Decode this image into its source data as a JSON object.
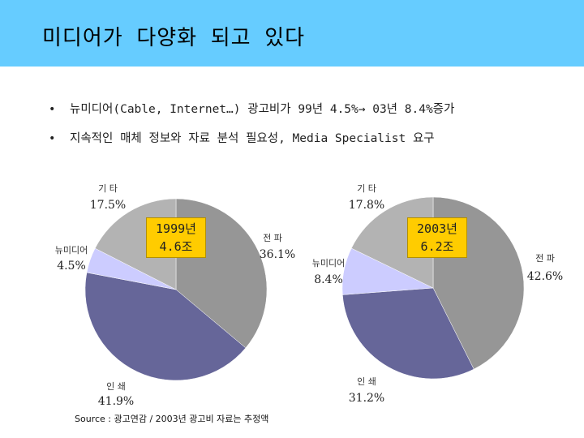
{
  "slide": {
    "title": "미디어가 다양화 되고 있다",
    "bullets": [
      {
        "marker": "•",
        "text": "뉴미디어(Cable, Internet…) 광고비가 99년 4.5%→ 03년 8.4%증가"
      },
      {
        "marker": "•",
        "text": "지속적인 매체 정보와 자료 분석 필요성, Media Specialist 요구"
      }
    ],
    "source": "Source : 광고연감 / 2003년 광고비 자료는 추정액"
  },
  "colors": {
    "title_bar": "#66ccff",
    "tv": "#969696",
    "print": "#666699",
    "new_media": "#ccccff",
    "other": "#b3b3b3",
    "year_box": "#ffcc00"
  },
  "chart_data": [
    {
      "type": "pie",
      "title": "1999년 4.6조",
      "box_lines": [
        "1999년",
        "4.6조"
      ],
      "slices": [
        {
          "name": "전파",
          "value": 36.1,
          "label": "36.1%"
        },
        {
          "name": "인쇄",
          "value": 41.9,
          "label": "41.9%"
        },
        {
          "name": "뉴미디어",
          "value": 4.5,
          "label": "4.5%"
        },
        {
          "name": "기타",
          "value": 17.5,
          "label": "17.5%"
        }
      ],
      "display_names": {
        "전파": "전 파",
        "인쇄": "인 쇄",
        "뉴미디어": "뉴미디어",
        "기타": "기 타"
      }
    },
    {
      "type": "pie",
      "title": "2003년 6.2조",
      "box_lines": [
        "2003년",
        "6.2조"
      ],
      "slices": [
        {
          "name": "전파",
          "value": 42.6,
          "label": "42.6%"
        },
        {
          "name": "인쇄",
          "value": 31.2,
          "label": "31.2%"
        },
        {
          "name": "뉴미디어",
          "value": 8.4,
          "label": "8.4%"
        },
        {
          "name": "기타",
          "value": 17.8,
          "label": "17.8%"
        }
      ],
      "display_names": {
        "전파": "전 파",
        "인쇄": "인 쇄",
        "뉴미디어": "뉴미디어",
        "기타": "기 타"
      }
    }
  ]
}
